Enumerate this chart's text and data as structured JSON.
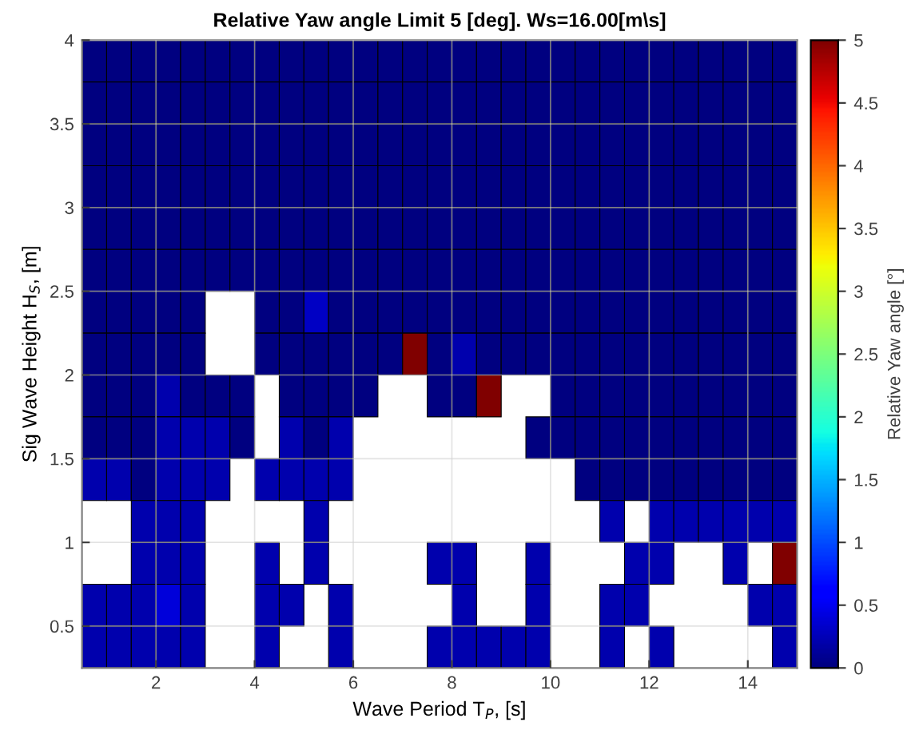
{
  "chart_data": {
    "type": "heatmap",
    "title": "Relative Yaw angle Limit 5 [deg]. Ws=16.00[m\\s]",
    "xlabel": "Wave Period T$_{P}$, [s]",
    "ylabel": "Sig Wave Height H$_{S}$, [m]",
    "clabel": "Relative Yaw angle [°]",
    "xlim": [
      0.5,
      15
    ],
    "ylim": [
      0.25,
      4
    ],
    "xticks": [
      2,
      4,
      6,
      8,
      10,
      12,
      14
    ],
    "yticks": [
      0.5,
      1,
      1.5,
      2,
      2.5,
      3,
      3.5,
      4
    ],
    "clim": [
      0,
      5
    ],
    "cticks": [
      0,
      0.5,
      1,
      1.5,
      2,
      2.5,
      3,
      3.5,
      4,
      4.5,
      5
    ],
    "grid": true,
    "cells": [
      [
        0,
        0,
        0,
        0,
        0,
        0,
        0,
        0,
        0,
        0,
        0,
        0,
        0,
        0,
        0,
        0,
        0,
        0,
        0,
        0,
        0,
        0,
        0,
        0,
        0,
        0,
        0,
        0,
        0
      ],
      [
        0,
        0,
        0,
        0,
        0,
        0,
        0,
        0,
        0,
        0,
        0,
        0,
        0,
        0,
        0,
        0,
        0,
        0,
        0,
        0,
        0,
        0,
        0,
        0,
        0,
        0,
        0,
        0,
        0
      ],
      [
        0,
        0,
        0,
        0,
        0,
        0,
        0,
        0,
        0,
        0,
        0,
        0,
        0,
        0,
        0,
        0,
        0,
        0,
        0,
        0,
        0,
        0,
        0,
        0,
        0,
        0,
        0,
        0,
        0
      ],
      [
        0,
        0,
        0,
        0,
        0,
        0,
        0,
        0,
        0,
        0,
        0,
        0,
        0,
        0,
        0,
        0,
        0,
        0,
        0,
        0,
        0,
        0,
        0,
        0,
        0,
        0,
        0,
        0,
        0
      ],
      [
        0,
        0,
        0,
        0,
        0,
        0,
        0,
        0,
        0,
        0,
        0,
        0,
        0,
        0,
        0,
        0,
        0,
        0,
        0,
        0,
        0,
        0,
        0,
        0,
        0,
        0,
        0,
        0,
        0
      ],
      [
        0,
        0,
        0,
        0,
        0,
        0,
        0,
        0,
        0,
        0,
        0,
        0,
        0,
        0,
        0,
        0,
        0,
        0,
        0,
        0,
        0,
        0,
        0,
        0,
        0,
        0,
        0,
        0,
        0
      ],
      [
        0,
        0,
        0,
        0,
        0,
        null,
        null,
        0,
        0,
        0.3,
        0,
        0,
        0,
        0,
        0,
        0,
        0,
        0,
        0,
        0,
        0,
        0,
        0,
        0,
        0,
        0,
        0,
        0,
        0
      ],
      [
        0,
        0,
        0,
        0,
        0,
        null,
        null,
        0,
        0,
        0,
        0,
        0,
        0,
        5,
        0,
        0.2,
        0,
        0,
        0,
        0,
        0,
        0,
        0,
        0,
        0,
        0,
        0,
        0,
        0
      ],
      [
        0,
        0,
        0,
        0.2,
        0,
        0,
        0,
        null,
        0,
        0,
        0,
        0,
        null,
        null,
        0,
        0,
        5,
        null,
        null,
        0,
        0,
        0,
        0,
        0,
        0,
        0,
        0,
        0,
        0
      ],
      [
        0,
        0,
        0,
        0.2,
        0.2,
        0.2,
        0,
        null,
        0.2,
        0,
        0.2,
        null,
        null,
        null,
        null,
        null,
        null,
        null,
        0,
        0,
        0,
        0,
        0,
        0,
        0,
        0,
        0,
        0,
        0
      ],
      [
        0.2,
        0.2,
        0,
        0.2,
        0.2,
        0.2,
        null,
        0.2,
        0.2,
        0.2,
        0.2,
        null,
        null,
        null,
        null,
        null,
        null,
        null,
        null,
        null,
        0,
        0,
        0,
        0,
        0,
        0,
        0,
        0,
        0
      ],
      [
        null,
        null,
        0.2,
        0.2,
        0.2,
        null,
        null,
        null,
        null,
        0.2,
        null,
        null,
        null,
        null,
        null,
        null,
        null,
        null,
        null,
        null,
        null,
        0.2,
        null,
        0.2,
        0.2,
        0.2,
        0.2,
        0.2,
        0.2
      ],
      [
        null,
        null,
        0.2,
        0.2,
        0.2,
        null,
        null,
        0.2,
        null,
        0.2,
        null,
        null,
        null,
        null,
        0.2,
        0.2,
        null,
        null,
        0.2,
        null,
        null,
        null,
        0.2,
        0.2,
        null,
        null,
        0.2,
        null,
        5
      ],
      [
        0.2,
        0.2,
        0.2,
        0.4,
        0.2,
        null,
        null,
        0.2,
        0.2,
        null,
        0.2,
        null,
        null,
        null,
        null,
        0.2,
        null,
        null,
        0.2,
        null,
        null,
        0.2,
        0.2,
        null,
        null,
        null,
        null,
        0.2,
        0.2
      ],
      [
        0.2,
        0.2,
        0.2,
        0.2,
        0.2,
        null,
        null,
        0.2,
        null,
        null,
        0.2,
        null,
        null,
        null,
        0.2,
        0.2,
        0.2,
        0.2,
        0.2,
        null,
        null,
        0.2,
        null,
        0.2,
        null,
        null,
        null,
        null,
        0.2
      ]
    ]
  }
}
